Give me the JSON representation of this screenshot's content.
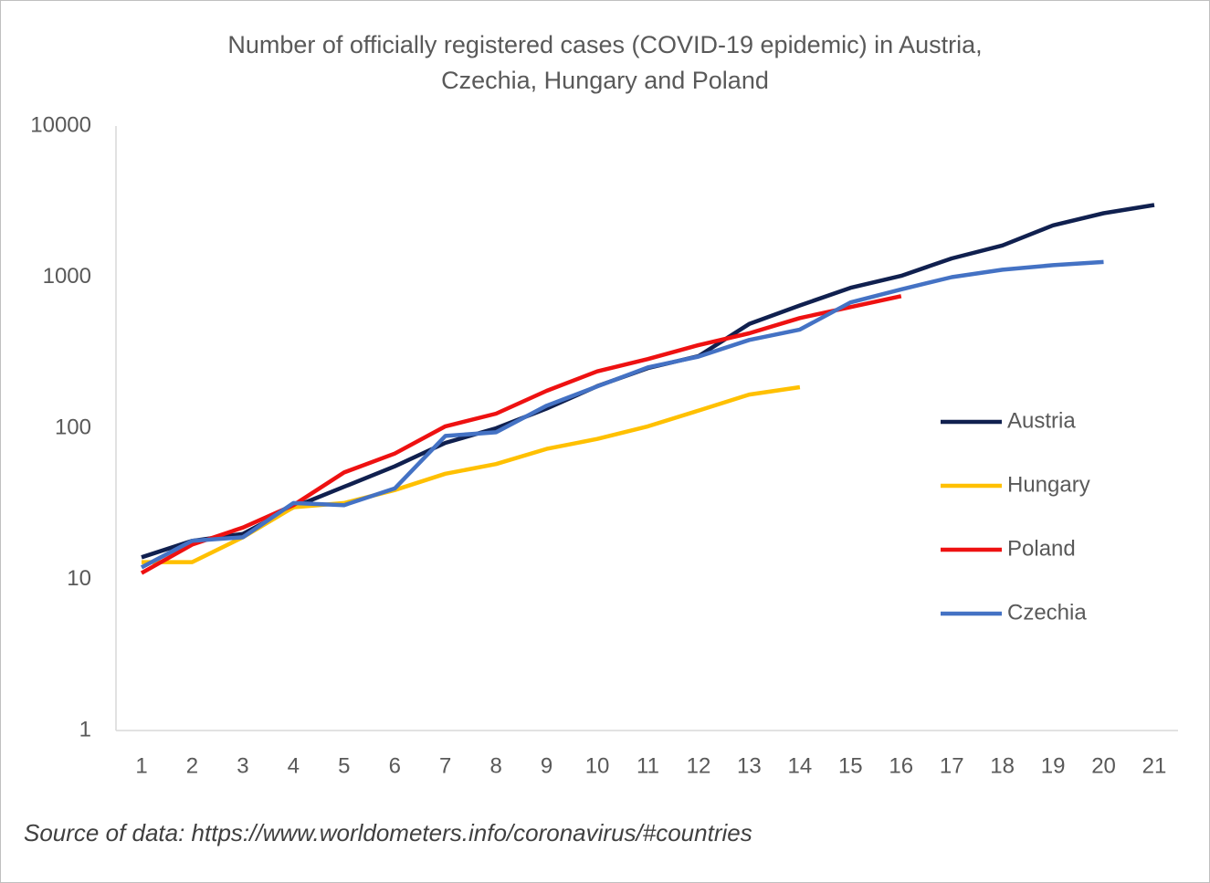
{
  "chart_data": {
    "type": "line",
    "title": "Number of officially registered cases (COVID-19 epidemic) in Austria,\nCzechia, Hungary and Poland",
    "source": "Source of data: https://www.worldometers.info/coronavirus/#countries",
    "categories": [
      1,
      2,
      3,
      4,
      5,
      6,
      7,
      8,
      9,
      10,
      11,
      12,
      13,
      14,
      15,
      16,
      17,
      18,
      19,
      20,
      21
    ],
    "log_scale": true,
    "ylim": [
      1,
      10000
    ],
    "yticks": [
      1,
      10,
      100,
      1000,
      10000
    ],
    "grid": false,
    "legend": "right",
    "series": [
      {
        "name": "Austria",
        "color": "#10204f",
        "values": [
          14,
          18,
          20,
          30,
          41,
          56,
          80,
          100,
          135,
          190,
          250,
          300,
          490,
          650,
          850,
          1020,
          1330,
          1620,
          2200,
          2650,
          3000
        ]
      },
      {
        "name": "Hungary",
        "color": "#ffc000",
        "values": [
          13,
          13,
          19,
          30,
          32,
          39,
          50,
          58,
          73,
          85,
          103,
          131,
          167,
          187,
          null,
          null,
          null,
          null,
          null,
          null,
          null
        ]
      },
      {
        "name": "Poland",
        "color": "#ee1111",
        "values": [
          11,
          17,
          22,
          31,
          51,
          68,
          103,
          125,
          177,
          238,
          287,
          355,
          425,
          536,
          634,
          749,
          null,
          null,
          null,
          null,
          null
        ]
      },
      {
        "name": "Czechia",
        "color": "#4472c4",
        "values": [
          12,
          18,
          19,
          32,
          31,
          40,
          89,
          94,
          141,
          189,
          253,
          298,
          384,
          450,
          680,
          830,
          1000,
          1120,
          1200,
          1260,
          null
        ]
      }
    ]
  }
}
